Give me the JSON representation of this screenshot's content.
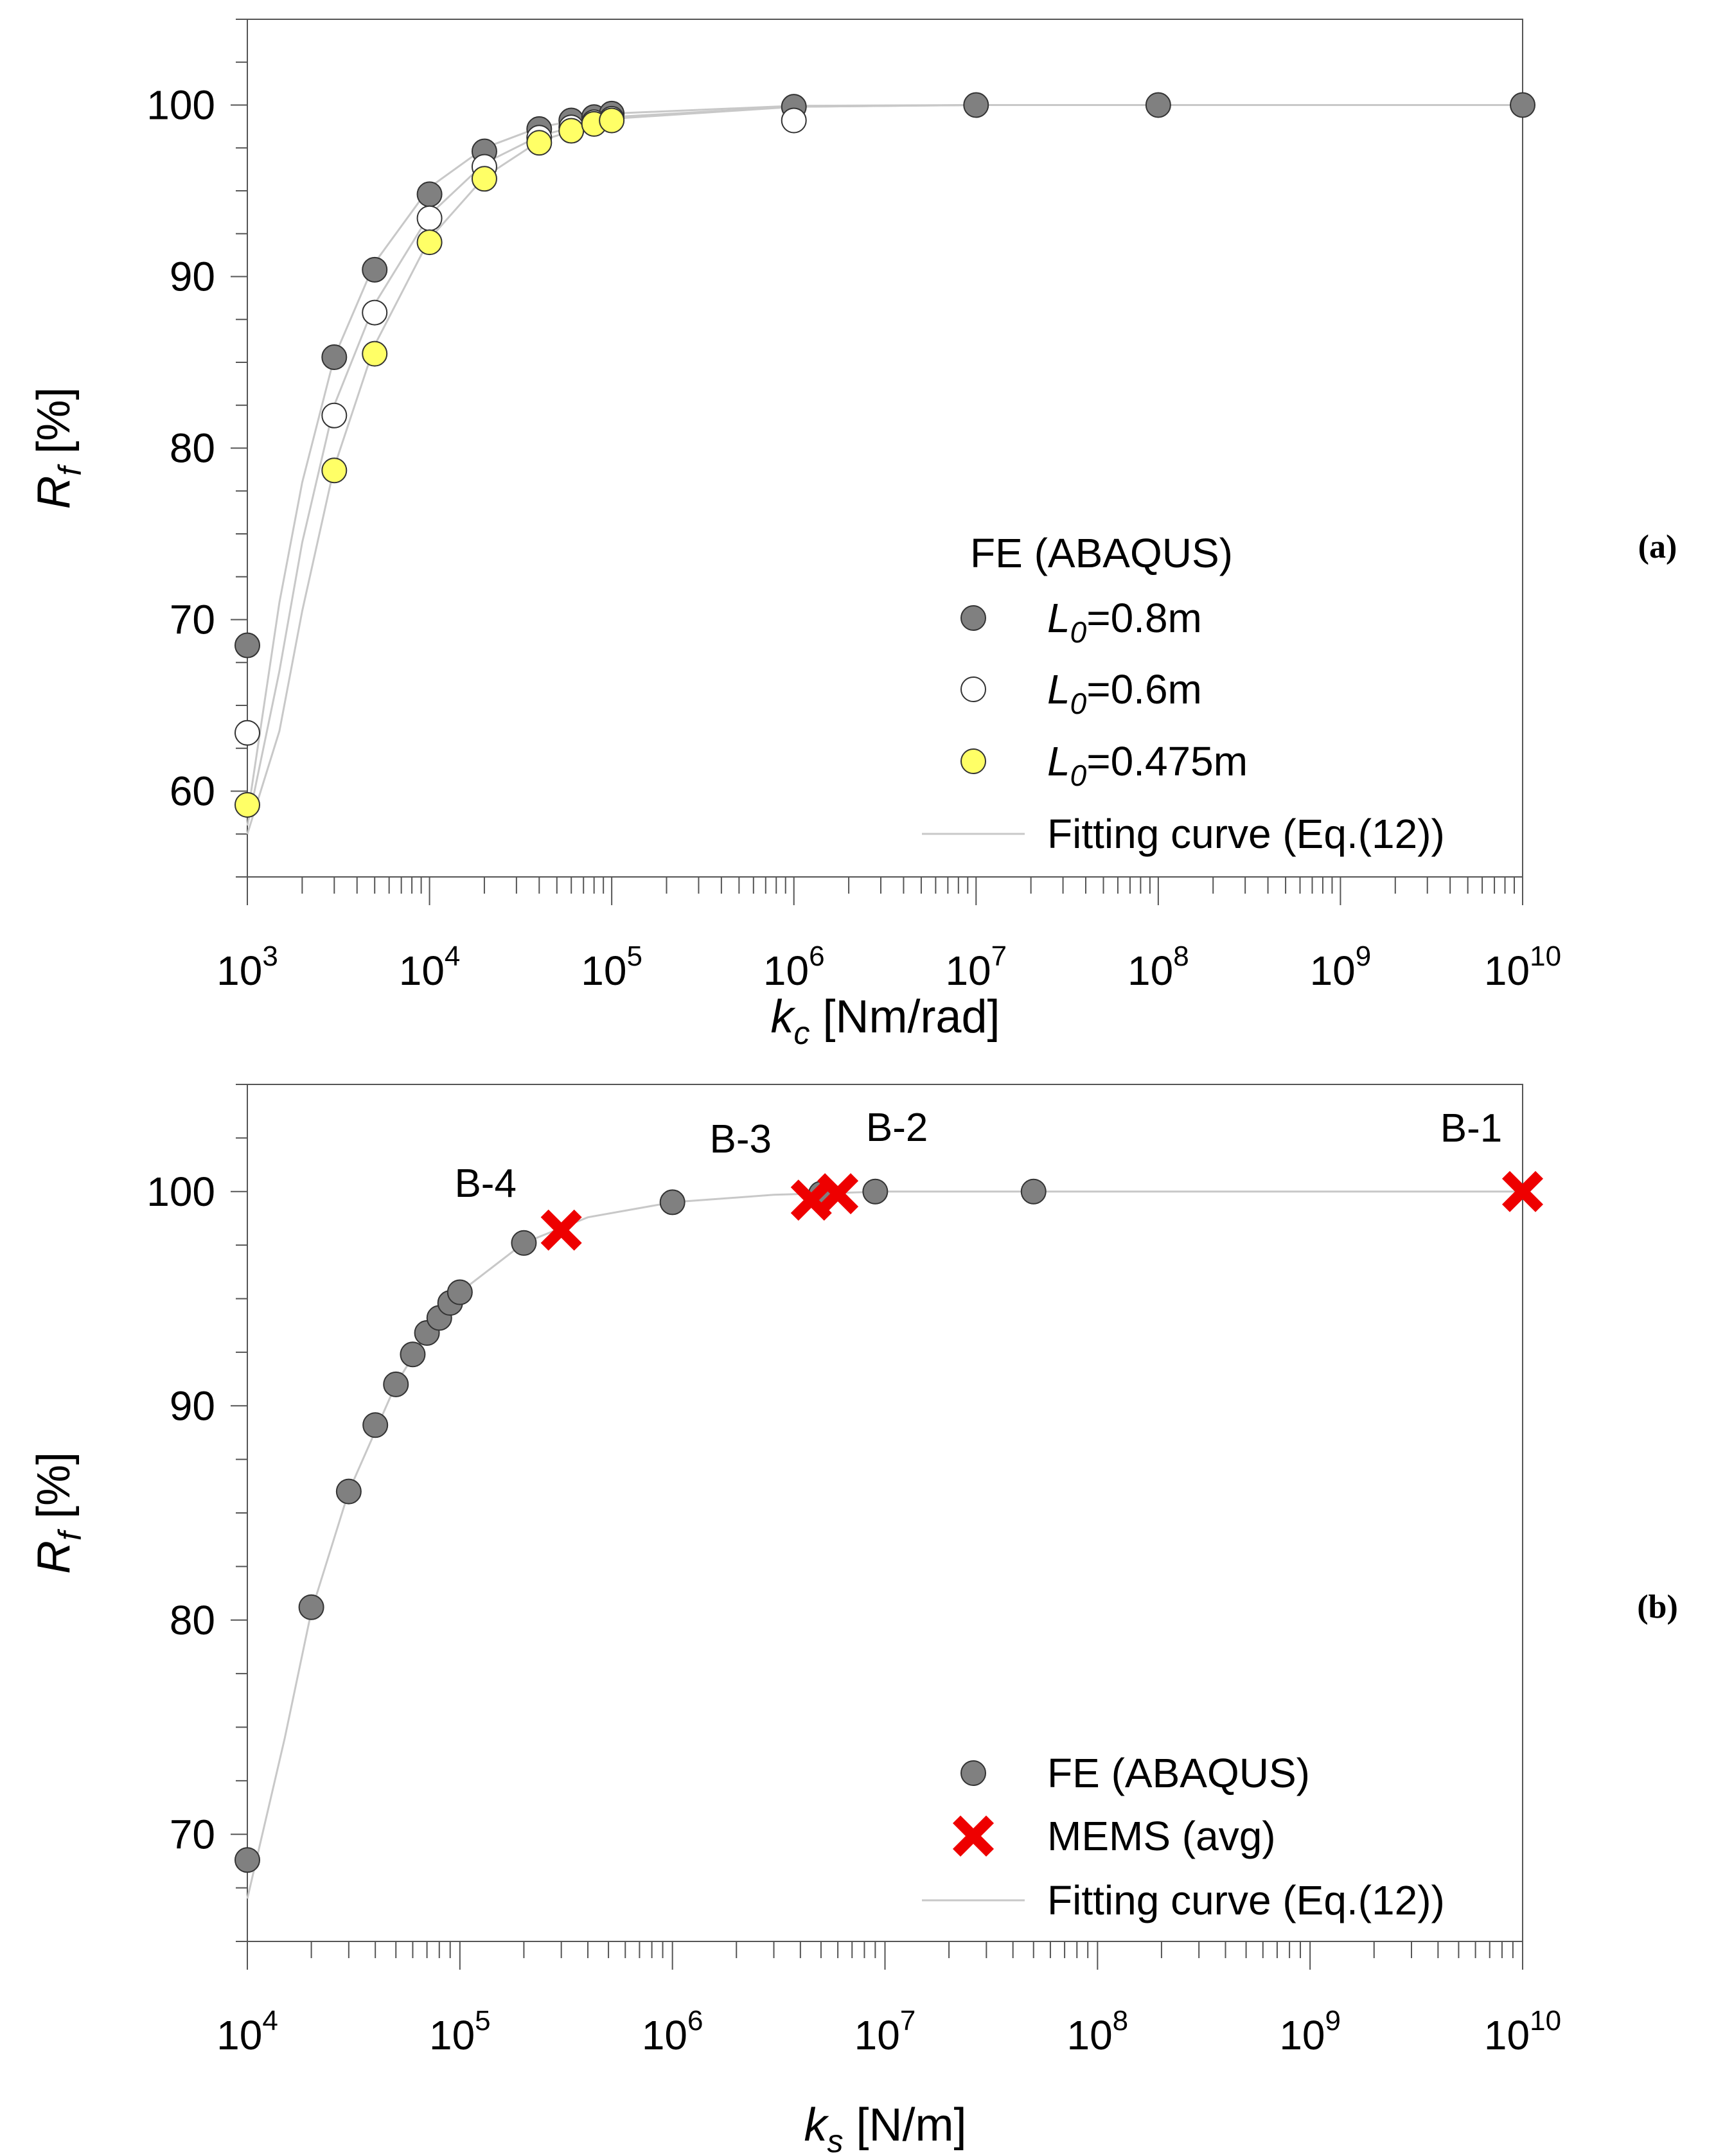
{
  "colors": {
    "dark_marker": "#808080",
    "white_marker": "#ffffff",
    "yellow_marker": "#ffff66",
    "mems_marker": "#ee0000",
    "fit_curve": "#c8c8c8",
    "axis": "#555555"
  },
  "chart_data": [
    {
      "panel": "(a)",
      "type": "scatter",
      "xscale": "log",
      "xlim": [
        1000,
        10000000000
      ],
      "ylim": [
        55,
        105
      ],
      "xlabel": {
        "symbol": "k",
        "subscript": "c",
        "unit": "[Nm/rad]"
      },
      "ylabel": {
        "symbol": "R",
        "subscript": "f",
        "unit": "[%]"
      },
      "xticks": [
        {
          "base": "10",
          "exp": "3"
        },
        {
          "base": "10",
          "exp": "4"
        },
        {
          "base": "10",
          "exp": "5"
        },
        {
          "base": "10",
          "exp": "6"
        },
        {
          "base": "10",
          "exp": "7"
        },
        {
          "base": "10",
          "exp": "8"
        },
        {
          "base": "10",
          "exp": "9"
        },
        {
          "base": "10",
          "exp": "10"
        }
      ],
      "yticks": [
        "60",
        "70",
        "80",
        "90",
        "100"
      ],
      "legend": {
        "title": "FE (ABAQUS)",
        "position": "bottom-right",
        "entries": [
          {
            "symbol": "L",
            "subscript": "0",
            "text": "=0.8m",
            "marker": "dark"
          },
          {
            "symbol": "L",
            "subscript": "0",
            "text": "=0.6m",
            "marker": "white"
          },
          {
            "symbol": "L",
            "subscript": "0",
            "text": "=0.475m",
            "marker": "yellow"
          },
          {
            "text": "Fitting curve (Eq.(12))",
            "marker": "line"
          }
        ]
      },
      "series": [
        {
          "name": "L0=0.8m",
          "marker": "dark",
          "points": [
            [
              1000,
              68.5
            ],
            [
              3000,
              85.3
            ],
            [
              5000,
              90.4
            ],
            [
              10000,
              94.8
            ],
            [
              20000,
              97.3
            ],
            [
              40000,
              98.6
            ],
            [
              60000,
              99.1
            ],
            [
              80000,
              99.3
            ],
            [
              100000,
              99.5
            ],
            [
              1000000,
              99.9
            ],
            [
              10000000,
              100
            ],
            [
              100000000,
              100
            ],
            [
              10000000000,
              100
            ]
          ]
        },
        {
          "name": "L0=0.6m",
          "marker": "white",
          "points": [
            [
              1000,
              63.4
            ],
            [
              3000,
              81.9
            ],
            [
              5000,
              87.9
            ],
            [
              10000,
              93.4
            ],
            [
              20000,
              96.4
            ],
            [
              40000,
              98.1
            ],
            [
              60000,
              98.7
            ],
            [
              80000,
              99.0
            ],
            [
              100000,
              99.2
            ],
            [
              1000000,
              99.1
            ]
          ]
        },
        {
          "name": "L0=0.475m",
          "marker": "yellow",
          "points": [
            [
              1000,
              59.2
            ],
            [
              3000,
              78.7
            ],
            [
              5000,
              85.5
            ],
            [
              10000,
              92.0
            ],
            [
              20000,
              95.7
            ],
            [
              40000,
              97.8
            ],
            [
              60000,
              98.5
            ],
            [
              80000,
              98.9
            ],
            [
              100000,
              99.1
            ]
          ]
        }
      ],
      "fit_curves": [
        {
          "name": "fit L0=0.8m",
          "points": [
            [
              1000,
              58.5
            ],
            [
              1500,
              71
            ],
            [
              2000,
              78
            ],
            [
              3000,
              85.3
            ],
            [
              5000,
              90.8
            ],
            [
              10000,
              95.2
            ],
            [
              20000,
              97.5
            ],
            [
              40000,
              98.7
            ],
            [
              100000,
              99.5
            ],
            [
              1000000,
              99.95
            ],
            [
              10000000,
              100
            ],
            [
              10000000000,
              100
            ]
          ]
        },
        {
          "name": "fit L0=0.6m",
          "points": [
            [
              1000,
              58.0
            ],
            [
              1500,
              67
            ],
            [
              2000,
              74.5
            ],
            [
              3000,
              82.5
            ],
            [
              5000,
              88.4
            ],
            [
              10000,
              93.6
            ],
            [
              20000,
              96.6
            ],
            [
              40000,
              98.2
            ],
            [
              100000,
              99.3
            ],
            [
              1000000,
              99.9
            ],
            [
              10000000,
              100
            ],
            [
              10000000000,
              100
            ]
          ]
        },
        {
          "name": "fit L0=0.475m",
          "points": [
            [
              1000,
              57.5
            ],
            [
              1500,
              63.5
            ],
            [
              2000,
              70.5
            ],
            [
              3000,
              78.9
            ],
            [
              5000,
              86.0
            ],
            [
              10000,
              92.2
            ],
            [
              20000,
              95.8
            ],
            [
              40000,
              97.9
            ],
            [
              100000,
              99.2
            ],
            [
              1000000,
              99.9
            ],
            [
              10000000,
              100
            ],
            [
              10000000000,
              100
            ]
          ]
        }
      ]
    },
    {
      "panel": "(b)",
      "type": "scatter",
      "xscale": "log",
      "xlim": [
        10000,
        10000000000
      ],
      "ylim": [
        65,
        105
      ],
      "xlabel": {
        "symbol": "k",
        "subscript": "s",
        "unit": "[N/m]"
      },
      "ylabel": {
        "symbol": "R",
        "subscript": "f",
        "unit": "[%]"
      },
      "xticks": [
        {
          "base": "10",
          "exp": "4"
        },
        {
          "base": "10",
          "exp": "5"
        },
        {
          "base": "10",
          "exp": "6"
        },
        {
          "base": "10",
          "exp": "7"
        },
        {
          "base": "10",
          "exp": "8"
        },
        {
          "base": "10",
          "exp": "9"
        },
        {
          "base": "10",
          "exp": "10"
        }
      ],
      "yticks": [
        "70",
        "80",
        "90",
        "100"
      ],
      "legend": {
        "position": "bottom-right",
        "entries": [
          {
            "text": "FE (ABAQUS)",
            "marker": "dark"
          },
          {
            "text": "MEMS (avg)",
            "marker": "cross"
          },
          {
            "text": "Fitting curve (Eq.(12))",
            "marker": "line"
          }
        ]
      },
      "series": [
        {
          "name": "FE (ABAQUS)",
          "marker": "dark",
          "points": [
            [
              10000,
              68.8
            ],
            [
              20000,
              80.6
            ],
            [
              30000,
              86.0
            ],
            [
              40000,
              89.1
            ],
            [
              50000,
              91.0
            ],
            [
              60000,
              92.4
            ],
            [
              70000,
              93.4
            ],
            [
              80000,
              94.1
            ],
            [
              90000,
              94.8
            ],
            [
              100000,
              95.3
            ],
            [
              200000,
              97.6
            ],
            [
              1000000,
              99.5
            ],
            [
              5000000,
              99.9
            ],
            [
              9000000,
              100
            ],
            [
              50000000,
              100
            ]
          ]
        },
        {
          "name": "MEMS (avg)",
          "marker": "cross",
          "points": [
            [
              300000,
              98.2
            ],
            [
              4500000,
              99.6
            ],
            [
              6000000,
              99.9
            ],
            [
              10000000000,
              100
            ]
          ]
        }
      ],
      "mems_labels": [
        {
          "label": "B-4",
          "x": 300000,
          "y": 98.2
        },
        {
          "label": "B-3",
          "x": 4500000,
          "y": 99.6
        },
        {
          "label": "B-2",
          "x": 6000000,
          "y": 99.9
        },
        {
          "label": "B-1",
          "x": 10000000000,
          "y": 100
        }
      ],
      "fit_curves": [
        {
          "name": "fit",
          "points": [
            [
              10000,
              67.0
            ],
            [
              15000,
              74.5
            ],
            [
              20000,
              80.4
            ],
            [
              30000,
              86.0
            ],
            [
              50000,
              91.0
            ],
            [
              70000,
              93.4
            ],
            [
              100000,
              95.3
            ],
            [
              200000,
              97.6
            ],
            [
              400000,
              98.8
            ],
            [
              1000000,
              99.5
            ],
            [
              3000000,
              99.85
            ],
            [
              10000000,
              100
            ],
            [
              10000000000,
              100
            ]
          ]
        }
      ]
    }
  ]
}
